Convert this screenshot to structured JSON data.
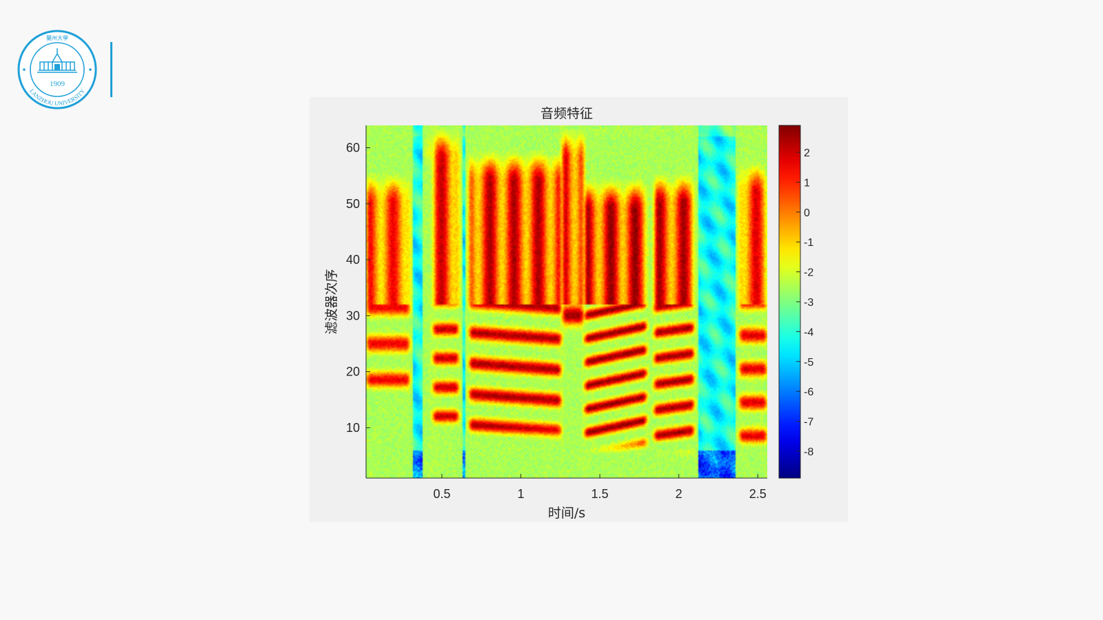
{
  "logo": {
    "year": "1909",
    "ring_text": "LANZHOU UNIVERSITY",
    "chinese_name": "蘭州大學",
    "color": "#1fa0d8"
  },
  "chart_data": {
    "type": "heatmap",
    "title": "音频特征",
    "xlabel": "时间/s",
    "ylabel": "滤波器次序",
    "xlim": [
      0.02,
      2.56
    ],
    "ylim": [
      1,
      64
    ],
    "xticks": [
      0.5,
      1,
      1.5,
      2,
      2.5
    ],
    "yticks": [
      10,
      20,
      30,
      40,
      50,
      60
    ],
    "colormap": "jet",
    "colorbar": {
      "limits": [
        -8.9,
        2.9
      ],
      "ticks": [
        2,
        1,
        0,
        -1,
        -2,
        -3,
        -4,
        -5,
        -6,
        -7,
        -8
      ]
    },
    "segments": [
      {
        "t0": 0.02,
        "t1": 0.3,
        "level": 1.6,
        "fmax": 56,
        "fund": 18.5,
        "harm": 6.5,
        "slope": 0
      },
      {
        "t0": 0.4,
        "t1": 0.45,
        "level": 0.8,
        "fmax": 64,
        "fund": 60,
        "harm": 5,
        "slope": 0
      },
      {
        "t0": 0.44,
        "t1": 0.61,
        "level": 2.1,
        "fmax": 64,
        "fund": 12,
        "harm": 5.2,
        "slope": 0
      },
      {
        "t0": 0.67,
        "t1": 1.26,
        "level": 2.4,
        "fmax": 60,
        "fund": 10.5,
        "harm": 5.5,
        "slope": -2
      },
      {
        "t0": 1.26,
        "t1": 1.4,
        "level": 2.6,
        "fmax": 64,
        "fund": 30,
        "harm": 9,
        "slope": 0
      },
      {
        "t0": 1.4,
        "t1": 1.8,
        "level": 2.7,
        "fmax": 55,
        "fund": 9,
        "harm": 4.2,
        "slope": 6
      },
      {
        "t0": 1.84,
        "t1": 2.1,
        "level": 2.5,
        "fmax": 56,
        "fund": 8.5,
        "harm": 4.6,
        "slope": 4
      },
      {
        "t0": 2.38,
        "t1": 2.56,
        "level": 1.8,
        "fmax": 58,
        "fund": 8.5,
        "harm": 6,
        "slope": 0
      }
    ]
  }
}
